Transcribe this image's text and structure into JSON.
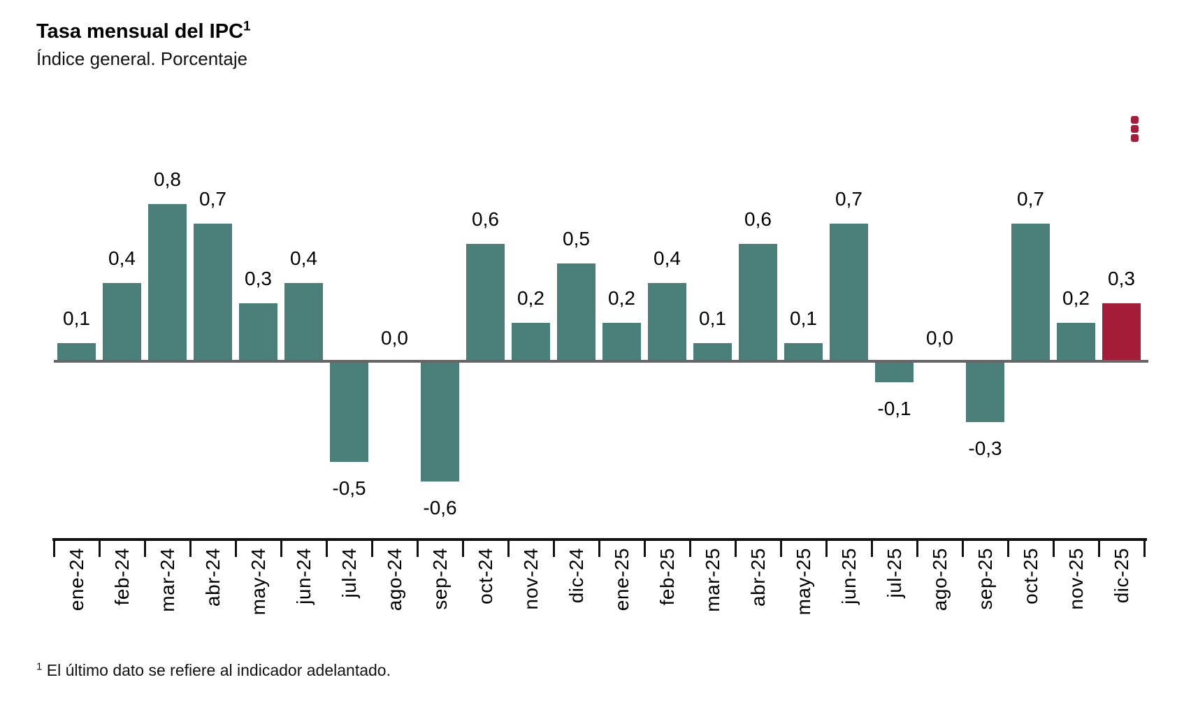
{
  "header": {
    "title": "Tasa mensual del IPC",
    "title_marker": "1",
    "subtitle": "Índice general. Porcentaje"
  },
  "menu": {
    "icon": "kebab-menu-icon",
    "color": "#A41C38"
  },
  "footnote": {
    "marker": "1",
    "text": " El último dato se refiere al indicador adelantado."
  },
  "colors": {
    "bar": "#4A7E78",
    "highlight": "#A41C38",
    "zero_line": "#666666",
    "axis": "#111111"
  },
  "chart_data": {
    "type": "bar",
    "title": "Tasa mensual del IPC",
    "subtitle": "Índice general. Porcentaje",
    "xlabel": "",
    "ylabel": "Porcentaje",
    "ylim": [
      -0.8,
      1.0
    ],
    "grid": false,
    "legend": "none",
    "decimal_separator": "comma",
    "categories": [
      "ene-24",
      "feb-24",
      "mar-24",
      "abr-24",
      "may-24",
      "jun-24",
      "jul-24",
      "ago-24",
      "sep-24",
      "oct-24",
      "nov-24",
      "dic-24",
      "ene-25",
      "feb-25",
      "mar-25",
      "abr-25",
      "may-25",
      "jun-25",
      "jul-25",
      "ago-25",
      "sep-25",
      "oct-25",
      "nov-25",
      "dic-25"
    ],
    "values": [
      0.1,
      0.4,
      0.8,
      0.7,
      0.3,
      0.4,
      -0.5,
      0.0,
      -0.6,
      0.6,
      0.2,
      0.5,
      0.2,
      0.4,
      0.1,
      0.6,
      0.1,
      0.7,
      -0.1,
      0.0,
      -0.3,
      0.7,
      0.2,
      0.3
    ],
    "value_labels": [
      "0,1",
      "0,4",
      "0,8",
      "0,7",
      "0,3",
      "0,4",
      "-0,5",
      "0,0",
      "-0,6",
      "0,6",
      "0,2",
      "0,5",
      "0,2",
      "0,4",
      "0,1",
      "0,6",
      "0,1",
      "0,7",
      "-0,1",
      "0,0",
      "-0,3",
      "0,7",
      "0,2",
      "0,3"
    ],
    "highlight_index": 23,
    "bar_color": "#4A7E78",
    "highlight_color": "#A41C38"
  }
}
